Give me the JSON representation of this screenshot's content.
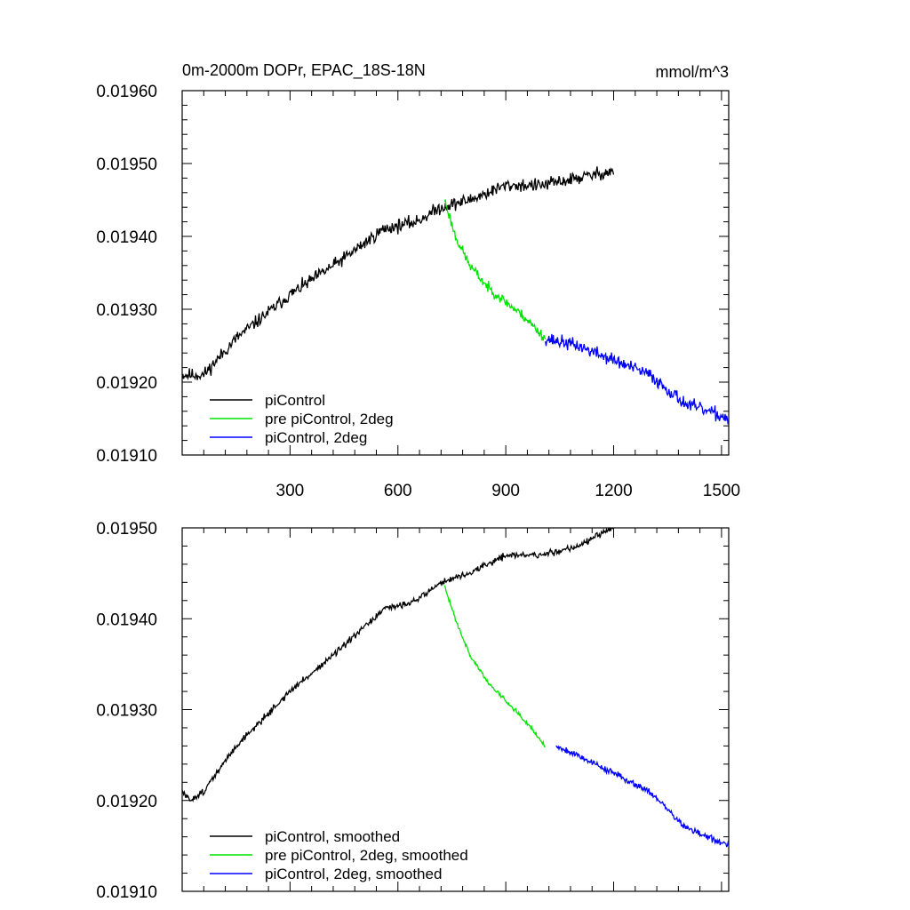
{
  "chart_data": [
    {
      "type": "line",
      "title": "0m-2000m DOPr, EPAC_18S-18N",
      "units": "mmol/m^3",
      "xlim": [
        0,
        1520
      ],
      "ylim": [
        0.0191,
        0.0196
      ],
      "yticks": [
        0.0191,
        0.0192,
        0.0193,
        0.0194,
        0.0195,
        0.0196
      ],
      "ytick_labels": [
        "0.01910",
        "0.01920",
        "0.01930",
        "0.01940",
        "0.01950",
        "0.01960"
      ],
      "xticks": [
        300,
        600,
        900,
        1200,
        1500
      ],
      "xtick_labels": [
        "300",
        "600",
        "900",
        "1200",
        "1500"
      ],
      "show_xtick_labels": true,
      "legend_position": "bottom-left",
      "series": [
        {
          "name": "piControl",
          "color": "#000000",
          "noise": 4.5e-06,
          "seed": 11,
          "points": [
            [
              0,
              0.01921
            ],
            [
              60,
              0.01921
            ],
            [
              150,
              0.01926
            ],
            [
              300,
              0.01932
            ],
            [
              450,
              0.01937
            ],
            [
              560,
              0.01941
            ],
            [
              650,
              0.01942
            ],
            [
              720,
              0.01944
            ],
            [
              800,
              0.01945
            ],
            [
              900,
              0.01947
            ],
            [
              1000,
              0.01947
            ],
            [
              1100,
              0.01948
            ],
            [
              1200,
              0.01949
            ]
          ]
        },
        {
          "name": "pre piControl, 2deg",
          "color": "#00e400",
          "noise": 3.5e-06,
          "seed": 23,
          "points": [
            [
              730,
              0.01945
            ],
            [
              760,
              0.0194
            ],
            [
              800,
              0.01936
            ],
            [
              850,
              0.01933
            ],
            [
              900,
              0.01931
            ],
            [
              950,
              0.01929
            ],
            [
              1010,
              0.01926
            ]
          ]
        },
        {
          "name": "piControl, 2deg",
          "color": "#0000ff",
          "noise": 4.5e-06,
          "seed": 37,
          "points": [
            [
              1010,
              0.01926
            ],
            [
              1100,
              0.01925
            ],
            [
              1200,
              0.01923
            ],
            [
              1300,
              0.01921
            ],
            [
              1400,
              0.01917
            ],
            [
              1520,
              0.01915
            ]
          ]
        }
      ]
    },
    {
      "type": "line",
      "title": "",
      "units": "",
      "xlim": [
        0,
        1520
      ],
      "ylim": [
        0.0191,
        0.0195
      ],
      "yticks": [
        0.0191,
        0.0192,
        0.0193,
        0.0194,
        0.0195
      ],
      "ytick_labels": [
        "0.01910",
        "0.01920",
        "0.01930",
        "0.01940",
        "0.01950"
      ],
      "xticks": [
        300,
        600,
        900,
        1200,
        1500
      ],
      "xtick_labels": [
        "300",
        "600",
        "900",
        "1200",
        "1500"
      ],
      "show_xtick_labels": false,
      "legend_position": "bottom-left",
      "series": [
        {
          "name": "piControl, smoothed",
          "color": "#000000",
          "noise": 1.8e-06,
          "seed": 51,
          "points": [
            [
              0,
              0.01921
            ],
            [
              20,
              0.0192
            ],
            [
              60,
              0.01921
            ],
            [
              150,
              0.01926
            ],
            [
              300,
              0.01932
            ],
            [
              450,
              0.01937
            ],
            [
              560,
              0.01941
            ],
            [
              650,
              0.01942
            ],
            [
              720,
              0.01944
            ],
            [
              800,
              0.01945
            ],
            [
              900,
              0.01947
            ],
            [
              1000,
              0.01947
            ],
            [
              1100,
              0.01948
            ],
            [
              1200,
              0.0195
            ]
          ]
        },
        {
          "name": "pre piControl, 2deg, smoothed",
          "color": "#00e400",
          "noise": 1.2e-06,
          "seed": 63,
          "points": [
            [
              730,
              0.019435
            ],
            [
              760,
              0.0194
            ],
            [
              800,
              0.01936
            ],
            [
              850,
              0.01933
            ],
            [
              900,
              0.01931
            ],
            [
              950,
              0.01929
            ],
            [
              1010,
              0.01926
            ]
          ]
        },
        {
          "name": "piControl, 2deg, smoothed",
          "color": "#0000ff",
          "noise": 1.8e-06,
          "seed": 79,
          "points": [
            [
              1040,
              0.01926
            ],
            [
              1100,
              0.01925
            ],
            [
              1200,
              0.01923
            ],
            [
              1300,
              0.01921
            ],
            [
              1400,
              0.01917
            ],
            [
              1520,
              0.01915
            ]
          ]
        }
      ]
    }
  ]
}
